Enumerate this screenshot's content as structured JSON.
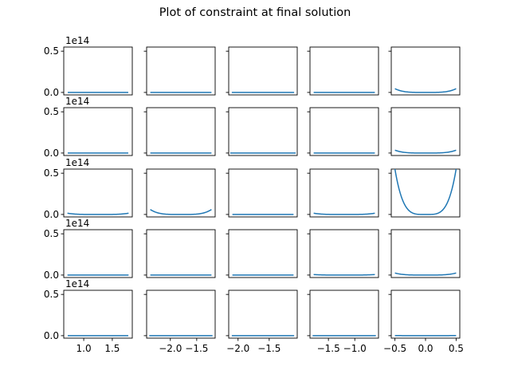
{
  "figure": {
    "title": "Plot of constraint at final solution",
    "offset_text": "1e14"
  },
  "style": {
    "line_color": "#1f77b4",
    "axis_color": "#000000",
    "background": "#ffffff"
  },
  "chart_data": {
    "type": "line",
    "layout": "grid",
    "rows": 5,
    "cols": 5,
    "shared_y": true,
    "title": "Plot of constraint at final solution",
    "ylim": [
      -0.03,
      0.55
    ],
    "y_scale_factor": "1e14",
    "y_ticks": [
      0.0,
      0.5
    ],
    "y_tick_labels": [
      "0.0",
      "0.5"
    ],
    "subplots": [
      {
        "row": 0,
        "col": 0,
        "xlim": [
          0.65,
          1.85
        ],
        "x_ticks": [],
        "x": [
          0.72,
          1.78
        ],
        "y": [
          0.0,
          0.0
        ]
      },
      {
        "row": 0,
        "col": 1,
        "xlim": [
          -0.56,
          0.56
        ],
        "x_ticks": [],
        "x": [
          -0.5,
          0.5
        ],
        "y": [
          0.0,
          0.0
        ]
      },
      {
        "row": 0,
        "col": 2,
        "xlim": [
          -1.1,
          1.1
        ],
        "x_ticks": [],
        "x": [
          -1.0,
          1.0
        ],
        "y": [
          0.0,
          0.0
        ]
      },
      {
        "row": 0,
        "col": 3,
        "xlim": [
          -0.56,
          0.56
        ],
        "x_ticks": [],
        "x": [
          -0.5,
          0.5
        ],
        "y": [
          0.0,
          0.0
        ]
      },
      {
        "row": 0,
        "col": 4,
        "xlim": [
          -0.56,
          0.56
        ],
        "x_ticks": [],
        "x": [
          -0.5,
          0.0,
          0.5
        ],
        "y": [
          0.045,
          0.0,
          0.045
        ]
      },
      {
        "row": 1,
        "col": 0,
        "xlim": [
          0.65,
          1.85
        ],
        "x_ticks": [],
        "x": [
          0.72,
          1.78
        ],
        "y": [
          0.0,
          0.0
        ]
      },
      {
        "row": 1,
        "col": 1,
        "xlim": [
          -0.56,
          0.56
        ],
        "x_ticks": [],
        "x": [
          -0.5,
          0.5
        ],
        "y": [
          0.0,
          0.0
        ]
      },
      {
        "row": 1,
        "col": 2,
        "xlim": [
          -2.7,
          1.8
        ],
        "x_ticks": [],
        "x": [
          -2.6,
          1.7
        ],
        "y": [
          0.0,
          0.0
        ]
      },
      {
        "row": 1,
        "col": 3,
        "xlim": [
          -0.56,
          0.56
        ],
        "x_ticks": [],
        "x": [
          -0.5,
          0.5
        ],
        "y": [
          0.0,
          0.0
        ]
      },
      {
        "row": 1,
        "col": 4,
        "xlim": [
          -0.56,
          0.56
        ],
        "x_ticks": [],
        "x": [
          -0.5,
          0.0,
          0.5
        ],
        "y": [
          0.035,
          0.0,
          0.035
        ]
      },
      {
        "row": 2,
        "col": 0,
        "xlim": [
          -0.56,
          0.56
        ],
        "x_ticks": [],
        "x": [
          -0.5,
          0.0,
          0.5
        ],
        "y": [
          0.015,
          0.0,
          0.015
        ]
      },
      {
        "row": 2,
        "col": 1,
        "xlim": [
          -0.56,
          0.56
        ],
        "x_ticks": [],
        "x": [
          -0.5,
          0.0,
          0.5
        ],
        "y": [
          0.06,
          0.0,
          0.06
        ]
      },
      {
        "row": 2,
        "col": 2,
        "xlim": [
          -0.56,
          0.56
        ],
        "x_ticks": [],
        "x": [
          -0.5,
          0.5
        ],
        "y": [
          0.0,
          0.0
        ]
      },
      {
        "row": 2,
        "col": 3,
        "xlim": [
          -0.56,
          0.56
        ],
        "x_ticks": [],
        "x": [
          -0.5,
          0.0,
          0.5
        ],
        "y": [
          0.015,
          0.0,
          0.015
        ]
      },
      {
        "row": 2,
        "col": 4,
        "xlim": [
          -0.56,
          0.56
        ],
        "x_ticks": [],
        "x": [
          -0.5,
          0.0,
          0.5
        ],
        "y": [
          0.55,
          0.0,
          0.55
        ]
      },
      {
        "row": 3,
        "col": 0,
        "xlim": [
          -0.56,
          0.56
        ],
        "x_ticks": [],
        "x": [
          -0.5,
          0.5
        ],
        "y": [
          0.0,
          0.0
        ]
      },
      {
        "row": 3,
        "col": 1,
        "xlim": [
          -0.56,
          0.56
        ],
        "x_ticks": [],
        "x": [
          -0.5,
          0.5
        ],
        "y": [
          0.0,
          0.0
        ]
      },
      {
        "row": 3,
        "col": 2,
        "xlim": [
          -0.56,
          0.56
        ],
        "x_ticks": [],
        "x": [
          -0.5,
          0.5
        ],
        "y": [
          0.0,
          0.0
        ]
      },
      {
        "row": 3,
        "col": 3,
        "xlim": [
          -0.56,
          0.56
        ],
        "x_ticks": [],
        "x": [
          -0.5,
          0.0,
          0.5
        ],
        "y": [
          0.006,
          0.0,
          0.006
        ]
      },
      {
        "row": 3,
        "col": 4,
        "xlim": [
          -0.56,
          0.56
        ],
        "x_ticks": [],
        "x": [
          -0.5,
          0.0,
          0.5
        ],
        "y": [
          0.025,
          0.0,
          0.025
        ]
      },
      {
        "row": 4,
        "col": 0,
        "xlim": [
          0.65,
          1.85
        ],
        "x_ticks": [
          1.0,
          1.5
        ],
        "x_tick_labels": [
          "1.0",
          "1.5"
        ],
        "x": [
          0.72,
          1.78
        ],
        "y": [
          0.0,
          0.0
        ]
      },
      {
        "row": 4,
        "col": 1,
        "xlim": [
          -2.45,
          -1.15
        ],
        "x_ticks": [
          -2.0,
          -1.5
        ],
        "x_tick_labels": [
          "−2.0",
          "−1.5"
        ],
        "x": [
          -2.4,
          -1.2
        ],
        "y": [
          0.0,
          0.0
        ]
      },
      {
        "row": 4,
        "col": 2,
        "xlim": [
          -2.15,
          -1.05
        ],
        "x_ticks": [
          -2.0,
          -1.5
        ],
        "x_tick_labels": [
          "−2.0",
          "−1.5"
        ],
        "x": [
          -2.1,
          -1.1
        ],
        "y": [
          0.0,
          0.0
        ]
      },
      {
        "row": 4,
        "col": 3,
        "xlim": [
          -1.85,
          -0.55
        ],
        "x_ticks": [
          -1.5,
          -1.0
        ],
        "x_tick_labels": [
          "−1.5",
          "−1.0"
        ],
        "x": [
          -1.8,
          -0.6
        ],
        "y": [
          0.0,
          0.0
        ]
      },
      {
        "row": 4,
        "col": 4,
        "xlim": [
          -0.56,
          0.56
        ],
        "x_ticks": [
          -0.5,
          0.0,
          0.5
        ],
        "x_tick_labels": [
          "−0.5",
          "0.0",
          "0.5"
        ],
        "x": [
          -0.5,
          0.0,
          0.5
        ],
        "y": [
          0.002,
          0.0,
          0.002
        ]
      }
    ]
  }
}
